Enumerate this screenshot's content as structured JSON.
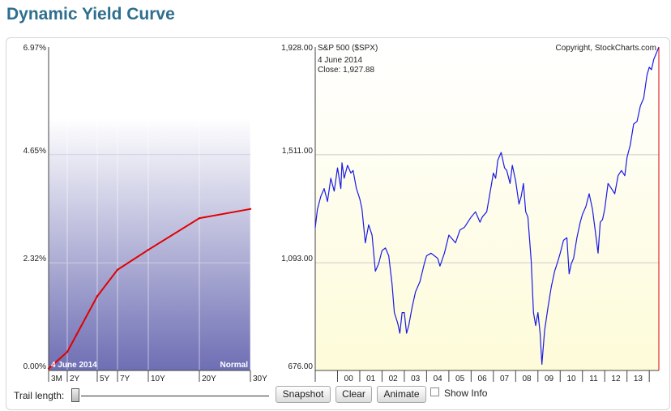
{
  "page": {
    "title": "Dynamic Yield Curve"
  },
  "controls": {
    "trail_label": "Trail length:",
    "trail_value": 0,
    "snapshot_label": "Snapshot",
    "clear_label": "Clear",
    "animate_label": "Animate",
    "show_info_label": "Show Info",
    "show_info_checked": false
  },
  "colors": {
    "curve": "#e00000",
    "spx_line": "#1a1ae6",
    "title": "#2e6e8e",
    "left_bg_top": "#ffffff",
    "left_bg_bottom": "#6e6eb4",
    "right_bg_top": "#ffffff",
    "right_bg_bottom": "#fdfbd8",
    "marker": "#e00000"
  },
  "chart_data": [
    {
      "type": "line",
      "name": "yield-curve",
      "categories": [
        "3M",
        "2Y",
        "5Y",
        "7Y",
        "10Y",
        "20Y",
        "30Y"
      ],
      "x": [
        0.25,
        2,
        5,
        7,
        10,
        20,
        30
      ],
      "values": [
        0.04,
        0.4,
        1.6,
        2.17,
        2.6,
        3.28,
        3.48
      ],
      "ylim": [
        0,
        6.97
      ],
      "yticks": [
        "0.00%",
        "2.32%",
        "4.65%",
        "6.97%"
      ],
      "ytick_values": [
        0,
        2.32,
        4.65,
        6.97
      ],
      "date_label": "4  June 2014",
      "shape_label": "Normal",
      "grid": true
    },
    {
      "type": "line",
      "name": "S&P 500 ($SPX)",
      "title": "S&P 500 ($SPX)",
      "copyright": "Copyright, StockCharts.com",
      "date_label": "4  June 2014",
      "close_label": "Close: 1,927.88",
      "ylim": [
        676,
        1928
      ],
      "yticks": [
        "676.00",
        "1,093.00",
        "1,511.00",
        "1,928.00"
      ],
      "ytick_values": [
        676,
        1093,
        1511,
        1928
      ],
      "xlim": [
        1999.0,
        2014.43
      ],
      "xticks": [
        "00",
        "01",
        "02",
        "03",
        "04",
        "05",
        "06",
        "07",
        "08",
        "09",
        "10",
        "11",
        "12",
        "13"
      ],
      "xtick_values": [
        2000,
        2001,
        2002,
        2003,
        2004,
        2005,
        2006,
        2007,
        2008,
        2009,
        2010,
        2011,
        2012,
        2013
      ],
      "x": [
        1999.0,
        1999.1,
        1999.25,
        1999.4,
        1999.55,
        1999.7,
        1999.85,
        2000.0,
        2000.15,
        2000.2,
        2000.3,
        2000.45,
        2000.6,
        2000.7,
        2000.85,
        2001.0,
        2001.1,
        2001.25,
        2001.4,
        2001.55,
        2001.7,
        2001.85,
        2002.0,
        2002.15,
        2002.3,
        2002.45,
        2002.55,
        2002.7,
        2002.8,
        2002.9,
        2003.0,
        2003.1,
        2003.2,
        2003.35,
        2003.5,
        2003.7,
        2003.9,
        2004.0,
        2004.2,
        2004.35,
        2004.5,
        2004.6,
        2004.8,
        2005.0,
        2005.2,
        2005.3,
        2005.5,
        2005.7,
        2005.85,
        2006.0,
        2006.2,
        2006.4,
        2006.5,
        2006.7,
        2006.9,
        2007.0,
        2007.1,
        2007.2,
        2007.35,
        2007.5,
        2007.6,
        2007.75,
        2007.85,
        2008.0,
        2008.15,
        2008.25,
        2008.35,
        2008.45,
        2008.55,
        2008.7,
        2008.8,
        2008.9,
        2009.0,
        2009.1,
        2009.18,
        2009.3,
        2009.45,
        2009.6,
        2009.75,
        2009.9,
        2010.0,
        2010.15,
        2010.3,
        2010.4,
        2010.5,
        2010.6,
        2010.75,
        2010.9,
        2011.0,
        2011.15,
        2011.3,
        2011.45,
        2011.6,
        2011.7,
        2011.8,
        2011.9,
        2012.0,
        2012.15,
        2012.3,
        2012.45,
        2012.6,
        2012.75,
        2012.9,
        2013.0,
        2013.15,
        2013.3,
        2013.45,
        2013.6,
        2013.75,
        2013.9,
        2014.0,
        2014.1,
        2014.2,
        2014.3,
        2014.43
      ],
      "values": [
        1228,
        1300,
        1350,
        1380,
        1330,
        1420,
        1370,
        1460,
        1380,
        1480,
        1420,
        1470,
        1440,
        1450,
        1380,
        1340,
        1300,
        1170,
        1240,
        1200,
        1060,
        1090,
        1140,
        1150,
        1120,
        1010,
        900,
        860,
        820,
        900,
        900,
        820,
        850,
        920,
        980,
        1020,
        1090,
        1120,
        1130,
        1120,
        1110,
        1080,
        1130,
        1200,
        1180,
        1170,
        1220,
        1230,
        1250,
        1270,
        1290,
        1250,
        1270,
        1290,
        1390,
        1440,
        1420,
        1490,
        1520,
        1460,
        1450,
        1400,
        1470,
        1410,
        1320,
        1350,
        1400,
        1290,
        1270,
        1100,
        900,
        850,
        900,
        820,
        700,
        830,
        920,
        1000,
        1060,
        1100,
        1130,
        1180,
        1190,
        1050,
        1090,
        1110,
        1190,
        1250,
        1280,
        1310,
        1360,
        1300,
        1200,
        1130,
        1250,
        1260,
        1300,
        1400,
        1380,
        1360,
        1430,
        1450,
        1430,
        1500,
        1550,
        1630,
        1640,
        1700,
        1730,
        1820,
        1850,
        1840,
        1880,
        1900,
        1928
      ]
    }
  ]
}
